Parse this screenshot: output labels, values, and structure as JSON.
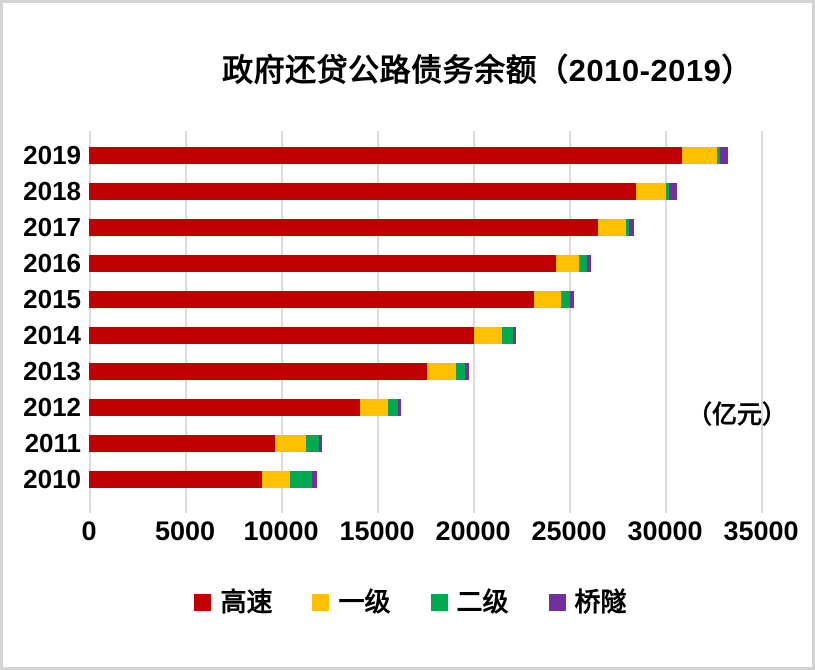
{
  "page": {
    "unit_label": "（亿元）"
  },
  "chart_data": {
    "type": "bar",
    "orientation": "horizontal",
    "stacked": true,
    "title": "政府还贷公路债务余额（2010-2019）",
    "xlabel": "（亿元）",
    "ylabel": "",
    "categories": [
      "2019",
      "2018",
      "2017",
      "2016",
      "2015",
      "2014",
      "2013",
      "2012",
      "2011",
      "2010"
    ],
    "series": [
      {
        "name": "高速",
        "color": "#c00000",
        "values": [
          30900,
          28500,
          26500,
          24300,
          23200,
          20050,
          17600,
          14100,
          9700,
          9000
        ]
      },
      {
        "name": "一级",
        "color": "#ffc000",
        "values": [
          1800,
          1550,
          1450,
          1200,
          1400,
          1450,
          1500,
          1450,
          1600,
          1450
        ]
      },
      {
        "name": "二级",
        "color": "#00a850",
        "values": [
          160,
          160,
          160,
          430,
          430,
          600,
          480,
          520,
          680,
          1150
        ]
      },
      {
        "name": "桥隧",
        "color": "#7030a0",
        "values": [
          420,
          400,
          270,
          220,
          230,
          160,
          210,
          160,
          150,
          270
        ]
      }
    ],
    "totals": [
      33280,
      30610,
      28380,
      26150,
      25260,
      22260,
      19790,
      16230,
      12130,
      11870
    ],
    "xlim": [
      0,
      35000
    ],
    "xticks": [
      0,
      5000,
      10000,
      15000,
      20000,
      25000,
      30000,
      35000
    ],
    "grid": "vertical",
    "gridline_color": "#dbdbdb",
    "legend_position": "bottom"
  }
}
